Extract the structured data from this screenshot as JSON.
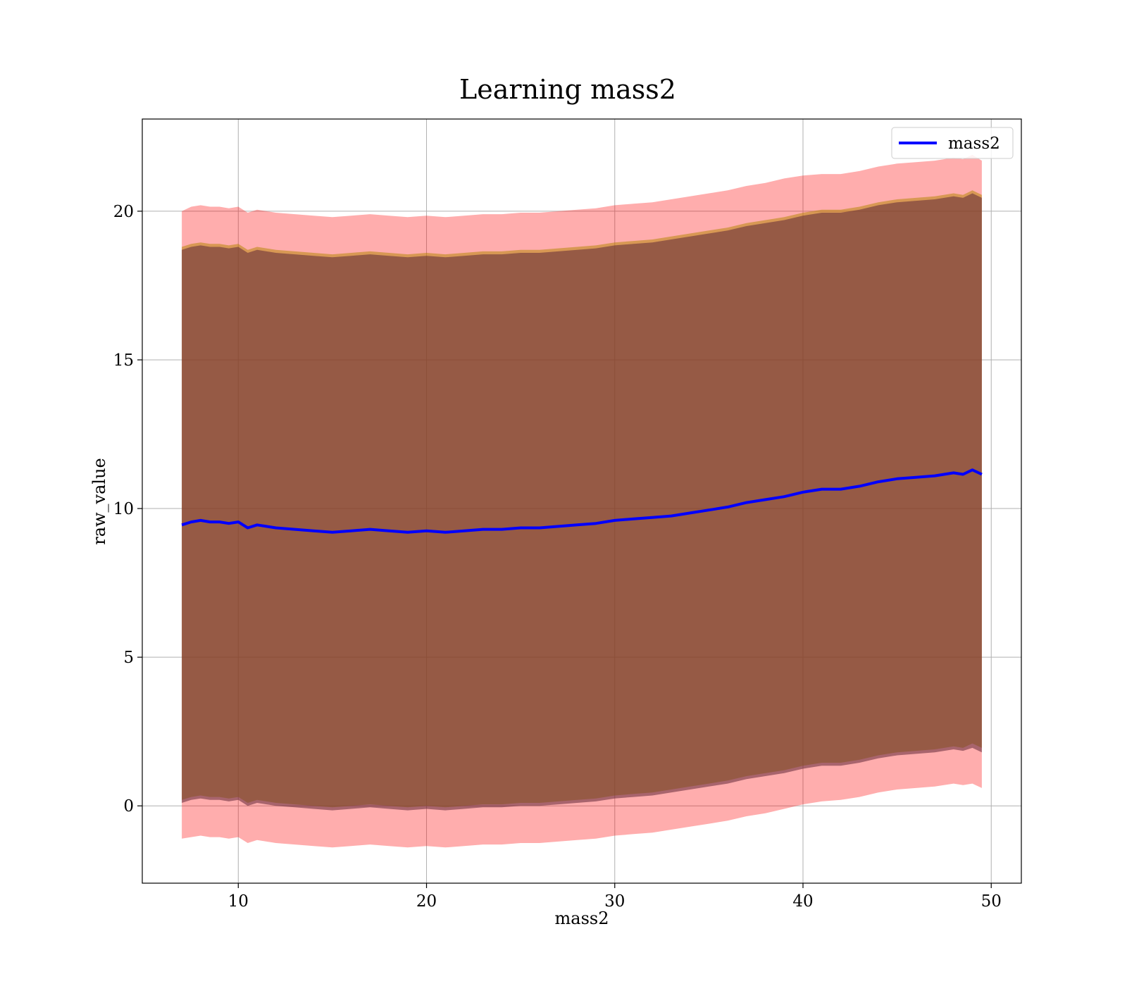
{
  "chart_data": {
    "type": "area",
    "title": "Learning mass2",
    "xlabel": "mass2",
    "ylabel": "raw_value",
    "xlim": [
      4.9,
      51.6
    ],
    "ylim": [
      -2.6,
      23.1
    ],
    "xticks": [
      10,
      20,
      30,
      40,
      50
    ],
    "yticks": [
      0,
      5,
      10,
      15,
      20
    ],
    "grid": true,
    "legend": {
      "position": "top-right",
      "entries": [
        {
          "label": "mass2",
          "color": "#0000ff"
        }
      ]
    },
    "colors": {
      "line": "#0000ff",
      "outer_band": "#ff0000",
      "mid_band": "#b8860b",
      "inner_band": "#602838"
    },
    "x": [
      7,
      7.5,
      8,
      8.5,
      9,
      9.5,
      10,
      10.5,
      11,
      11.5,
      12,
      13,
      14,
      15,
      16,
      17,
      18,
      19,
      20,
      21,
      22,
      23,
      24,
      25,
      26,
      27,
      28,
      29,
      30,
      31,
      32,
      33,
      34,
      35,
      36,
      37,
      38,
      39,
      40,
      41,
      42,
      43,
      44,
      45,
      46,
      47,
      48,
      48.5,
      49,
      49.5
    ],
    "series": [
      {
        "name": "mass2",
        "values": [
          9.45,
          9.55,
          9.6,
          9.55,
          9.55,
          9.5,
          9.55,
          9.35,
          9.45,
          9.4,
          9.35,
          9.3,
          9.25,
          9.2,
          9.25,
          9.3,
          9.25,
          9.2,
          9.25,
          9.2,
          9.25,
          9.3,
          9.3,
          9.35,
          9.35,
          9.4,
          9.45,
          9.5,
          9.6,
          9.65,
          9.7,
          9.75,
          9.85,
          9.95,
          10.05,
          10.2,
          10.3,
          10.4,
          10.55,
          10.65,
          10.65,
          10.75,
          10.9,
          11.0,
          11.05,
          11.1,
          11.2,
          11.15,
          11.3,
          11.15
        ]
      }
    ],
    "bands": [
      {
        "lower": [
          -1.1,
          -1.05,
          -1.0,
          -1.05,
          -1.05,
          -1.1,
          -1.05,
          -1.25,
          -1.15,
          -1.2,
          -1.25,
          -1.3,
          -1.35,
          -1.4,
          -1.35,
          -1.3,
          -1.35,
          -1.4,
          -1.35,
          -1.4,
          -1.35,
          -1.3,
          -1.3,
          -1.25,
          -1.25,
          -1.2,
          -1.15,
          -1.1,
          -1.0,
          -0.95,
          -0.9,
          -0.8,
          -0.7,
          -0.6,
          -0.5,
          -0.35,
          -0.25,
          -0.1,
          0.05,
          0.15,
          0.2,
          0.3,
          0.45,
          0.55,
          0.6,
          0.65,
          0.75,
          0.7,
          0.75,
          0.6
        ],
        "upper": [
          20.0,
          20.15,
          20.2,
          20.15,
          20.15,
          20.1,
          20.15,
          19.95,
          20.05,
          20.0,
          19.95,
          19.9,
          19.85,
          19.8,
          19.85,
          19.9,
          19.85,
          19.8,
          19.85,
          19.8,
          19.85,
          19.9,
          19.9,
          19.95,
          19.95,
          20.0,
          20.05,
          20.1,
          20.2,
          20.25,
          20.3,
          20.4,
          20.5,
          20.6,
          20.7,
          20.85,
          20.95,
          21.1,
          21.2,
          21.25,
          21.25,
          21.35,
          21.5,
          21.6,
          21.65,
          21.7,
          21.8,
          21.75,
          21.9,
          21.7
        ]
      },
      {
        "lower": [
          0.2,
          0.3,
          0.35,
          0.3,
          0.3,
          0.25,
          0.3,
          0.1,
          0.2,
          0.15,
          0.1,
          0.05,
          0.0,
          -0.05,
          0.0,
          0.05,
          0.0,
          -0.05,
          0.0,
          -0.05,
          0.0,
          0.05,
          0.05,
          0.1,
          0.1,
          0.15,
          0.2,
          0.25,
          0.35,
          0.4,
          0.45,
          0.55,
          0.65,
          0.75,
          0.85,
          1.0,
          1.1,
          1.2,
          1.35,
          1.45,
          1.45,
          1.55,
          1.7,
          1.8,
          1.85,
          1.9,
          2.0,
          1.95,
          2.1,
          1.95
        ],
        "upper": [
          18.8,
          18.9,
          18.95,
          18.9,
          18.9,
          18.85,
          18.9,
          18.7,
          18.8,
          18.75,
          18.7,
          18.65,
          18.6,
          18.55,
          18.6,
          18.65,
          18.6,
          18.55,
          18.6,
          18.55,
          18.6,
          18.65,
          18.65,
          18.7,
          18.7,
          18.75,
          18.8,
          18.85,
          18.95,
          19.0,
          19.05,
          19.15,
          19.25,
          19.35,
          19.45,
          19.6,
          19.7,
          19.8,
          19.95,
          20.05,
          20.05,
          20.15,
          20.3,
          20.4,
          20.45,
          20.5,
          20.6,
          20.55,
          20.7,
          20.55
        ]
      },
      {
        "lower": [
          0.1,
          0.2,
          0.25,
          0.2,
          0.2,
          0.15,
          0.2,
          0.0,
          0.1,
          0.05,
          0.0,
          -0.05,
          -0.1,
          -0.15,
          -0.1,
          -0.05,
          -0.1,
          -0.15,
          -0.1,
          -0.15,
          -0.1,
          -0.05,
          -0.05,
          0.0,
          0.0,
          0.05,
          0.1,
          0.15,
          0.25,
          0.3,
          0.35,
          0.45,
          0.55,
          0.65,
          0.75,
          0.9,
          1.0,
          1.1,
          1.25,
          1.35,
          1.35,
          1.45,
          1.6,
          1.7,
          1.75,
          1.8,
          1.9,
          1.85,
          1.95,
          1.8
        ],
        "upper": [
          18.7,
          18.8,
          18.85,
          18.8,
          18.8,
          18.75,
          18.8,
          18.6,
          18.7,
          18.65,
          18.6,
          18.55,
          18.5,
          18.45,
          18.5,
          18.55,
          18.5,
          18.45,
          18.5,
          18.45,
          18.5,
          18.55,
          18.55,
          18.6,
          18.6,
          18.65,
          18.7,
          18.75,
          18.85,
          18.9,
          18.95,
          19.05,
          19.15,
          19.25,
          19.35,
          19.5,
          19.6,
          19.7,
          19.85,
          19.95,
          19.95,
          20.05,
          20.2,
          20.3,
          20.35,
          20.4,
          20.5,
          20.45,
          20.6,
          20.45
        ]
      }
    ]
  }
}
